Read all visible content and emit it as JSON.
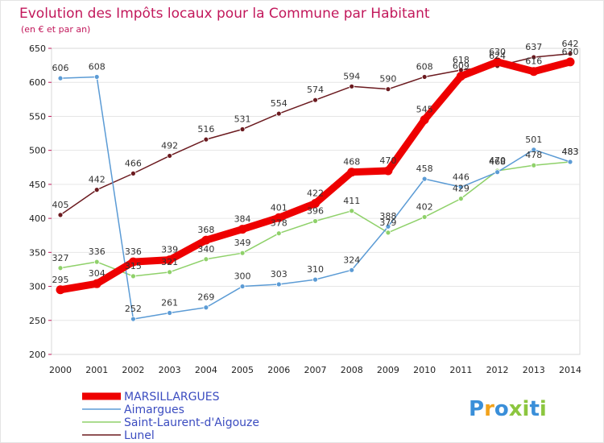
{
  "chart_data": {
    "type": "line",
    "title": "Evolution des Impôts locaux pour la Commune par Habitant",
    "subtitle": "(en € et par an)",
    "xlabel": "",
    "ylabel": "",
    "categories": [
      "2000",
      "2001",
      "2002",
      "2003",
      "2004",
      "2005",
      "2006",
      "2007",
      "2008",
      "2009",
      "2010",
      "2011",
      "2012",
      "2013",
      "2014"
    ],
    "ylim": [
      200,
      650
    ],
    "yticks": [
      200,
      250,
      300,
      350,
      400,
      450,
      500,
      550,
      600,
      650
    ],
    "grid": true,
    "series": [
      {
        "name": "Lunel",
        "color": "#6b1a1f",
        "values": [
          405,
          442,
          466,
          492,
          516,
          531,
          554,
          574,
          594,
          590,
          608,
          618,
          624,
          637,
          642
        ]
      },
      {
        "name": "Saint-Laurent-d'Aigouze",
        "color": "#8fd16a",
        "values": [
          327,
          336,
          315,
          321,
          340,
          349,
          378,
          396,
          411,
          379,
          402,
          429,
          470,
          478,
          483
        ]
      },
      {
        "name": "Aimargues",
        "color": "#5b9bd5",
        "values": [
          606,
          608,
          252,
          261,
          269,
          300,
          303,
          310,
          324,
          388,
          458,
          446,
          468,
          501,
          483
        ]
      },
      {
        "name": "MARSILLARGUES",
        "color": "#ee0000",
        "values": [
          295,
          304,
          336,
          339,
          368,
          384,
          401,
          422,
          468,
          470,
          545,
          609,
          630,
          616,
          630
        ]
      }
    ],
    "legend": [
      "MARSILLARGUES",
      "Aimargues",
      "Saint-Laurent-d'Aigouze",
      "Lunel"
    ]
  },
  "legend_color": "#3b4cc0",
  "logo": {
    "text": "Proxiti",
    "colors": [
      "#3a8fd9",
      "#f2a21b",
      "#3a8fd9",
      "#8cc63f",
      "#8cc63f",
      "#3a8fd9",
      "#8cc63f"
    ]
  }
}
